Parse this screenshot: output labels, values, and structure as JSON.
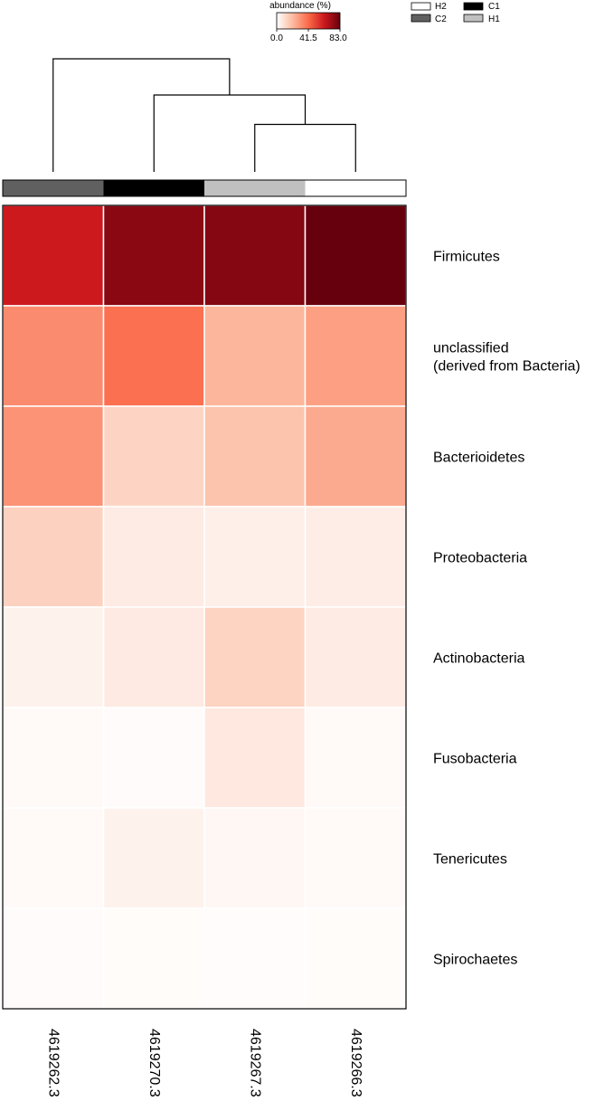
{
  "chart_data": {
    "type": "heatmap",
    "colorbar": {
      "title": "abundance (%)",
      "min": 0.0,
      "max": 83.0,
      "ticks": [
        "0.0",
        "41.5",
        "83.0"
      ],
      "colors": [
        "#ffffff",
        "#fcbba1",
        "#fb6a4a",
        "#cb181d",
        "#67000d"
      ]
    },
    "group_legend": [
      {
        "label": "H2",
        "color": "#ffffff"
      },
      {
        "label": "C1",
        "color": "#000000"
      },
      {
        "label": "C2",
        "color": "#606060"
      },
      {
        "label": "H1",
        "color": "#c0c0c0"
      }
    ],
    "columns": [
      "4619262.3",
      "4619270.3",
      "4619267.3",
      "4619266.3"
    ],
    "column_groups": [
      "C2",
      "C1",
      "H1",
      "H2"
    ],
    "rows": [
      "Firmicutes",
      "unclassified\n(derived from Bacteria)",
      "Bacterioidetes",
      "Proteobacteria",
      "Actinobacteria",
      "Fusobacteria",
      "Tenericutes",
      "Spirochaetes"
    ],
    "values": [
      [
        62.0,
        76.0,
        77.0,
        83.0
      ],
      [
        33.0,
        40.0,
        22.0,
        28.0
      ],
      [
        31.0,
        13.0,
        18.0,
        25.0
      ],
      [
        14.0,
        6.0,
        5.0,
        5.5
      ],
      [
        4.0,
        6.5,
        13.5,
        6.0
      ],
      [
        1.5,
        1.2,
        7.0,
        1.8
      ],
      [
        1.5,
        4.0,
        2.5,
        1.8
      ],
      [
        1.2,
        1.0,
        0.8,
        1.0
      ]
    ],
    "dendrogram": {
      "merges": [
        {
          "left": 2,
          "right": 3,
          "height": 0.42
        },
        {
          "left": 1,
          "right": "m0",
          "height": 0.68
        },
        {
          "left": 0,
          "right": "m1",
          "height": 1.0
        }
      ]
    }
  }
}
